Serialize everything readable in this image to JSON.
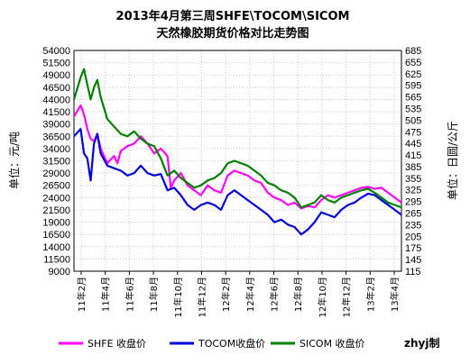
{
  "chart_data": {
    "type": "line",
    "title": "2013年4月第三周SHFE\\TOCOM\\SICOM",
    "subtitle": "天然橡胶期货价格对比走势图",
    "ylabel_left": "单位：元/吨",
    "ylabel_right": "单位：日圆/公斤",
    "left_axis": {
      "ylim": [
        9000,
        54000
      ],
      "ticks": [
        "54000",
        "51500",
        "49000",
        "46500",
        "44000",
        "41500",
        "39000",
        "36500",
        "34000",
        "31500",
        "29000",
        "26500",
        "24000",
        "21500",
        "19000",
        "16500",
        "14000",
        "11500",
        "9000"
      ]
    },
    "right_axis": {
      "ylim": [
        115,
        685
      ],
      "ticks": [
        "685",
        "655",
        "625",
        "595",
        "565",
        "535",
        "505",
        "475",
        "445",
        "415",
        "385",
        "355",
        "325",
        "295",
        "265",
        "235",
        "205",
        "175",
        "145",
        "115"
      ]
    },
    "x_tick_labels": [
      "11年2月",
      "11年4月",
      "11年6月",
      "11年8月",
      "11年10月",
      "11年12月",
      "12年2月",
      "12年4月",
      "12年6月",
      "12年8月",
      "12年10月",
      "12年12月",
      "13年2月",
      "13年4月"
    ],
    "grid": true,
    "legend_position": "bottom",
    "credit": "zhyj制",
    "series": [
      {
        "name": "SHFE 收盘价",
        "color": "#ff00ff",
        "axis": "left",
        "points": [
          [
            0,
            40500
          ],
          [
            1,
            42800
          ],
          [
            1.5,
            41000
          ],
          [
            2,
            38000
          ],
          [
            2.5,
            36000
          ],
          [
            3,
            35500
          ],
          [
            3.5,
            37000
          ],
          [
            4,
            34000
          ],
          [
            5,
            31000
          ],
          [
            6,
            32500
          ],
          [
            6.5,
            31000
          ],
          [
            7,
            33500
          ],
          [
            8,
            34500
          ],
          [
            9,
            35000
          ],
          [
            10,
            36500
          ],
          [
            11,
            35000
          ],
          [
            12,
            33000
          ],
          [
            13,
            34000
          ],
          [
            14,
            32500
          ],
          [
            14.5,
            26000
          ],
          [
            15,
            27500
          ],
          [
            16,
            29000
          ],
          [
            17,
            26500
          ],
          [
            18,
            25500
          ],
          [
            19,
            24500
          ],
          [
            20,
            26500
          ],
          [
            21,
            25500
          ],
          [
            22,
            25000
          ],
          [
            23,
            28500
          ],
          [
            24,
            29500
          ],
          [
            25,
            29000
          ],
          [
            26,
            28500
          ],
          [
            27,
            27500
          ],
          [
            28,
            27000
          ],
          [
            29,
            25000
          ],
          [
            30,
            24000
          ],
          [
            31,
            23500
          ],
          [
            32,
            22500
          ],
          [
            33,
            23000
          ],
          [
            34,
            21800
          ],
          [
            35,
            22300
          ],
          [
            36,
            22000
          ],
          [
            37,
            23500
          ],
          [
            38,
            24500
          ],
          [
            39,
            24000
          ],
          [
            40,
            24500
          ],
          [
            41,
            25000
          ],
          [
            42,
            25500
          ],
          [
            43,
            26000
          ],
          [
            44,
            26200
          ],
          [
            45,
            25800
          ],
          [
            46,
            26000
          ],
          [
            47,
            25000
          ],
          [
            48,
            24000
          ],
          [
            49,
            23000
          ]
        ]
      },
      {
        "name": "TOCOM收盘价",
        "color": "#0000dd",
        "axis": "left",
        "points": [
          [
            0,
            36500
          ],
          [
            1,
            38000
          ],
          [
            1.5,
            33000
          ],
          [
            2,
            32000
          ],
          [
            2.5,
            27500
          ],
          [
            3,
            35000
          ],
          [
            3.5,
            37000
          ],
          [
            4,
            33000
          ],
          [
            5,
            30500
          ],
          [
            6,
            30000
          ],
          [
            7,
            29500
          ],
          [
            8,
            28500
          ],
          [
            9,
            29000
          ],
          [
            10,
            30500
          ],
          [
            11,
            29000
          ],
          [
            12,
            28500
          ],
          [
            13,
            28800
          ],
          [
            14,
            25500
          ],
          [
            15,
            26000
          ],
          [
            16,
            24500
          ],
          [
            17,
            22500
          ],
          [
            18,
            21500
          ],
          [
            19,
            22500
          ],
          [
            20,
            23000
          ],
          [
            21,
            22500
          ],
          [
            22,
            21500
          ],
          [
            23,
            24500
          ],
          [
            24,
            25500
          ],
          [
            25,
            24500
          ],
          [
            26,
            23500
          ],
          [
            27,
            22500
          ],
          [
            28,
            21500
          ],
          [
            29,
            20500
          ],
          [
            30,
            19000
          ],
          [
            31,
            19500
          ],
          [
            32,
            18500
          ],
          [
            33,
            18000
          ],
          [
            34,
            16500
          ],
          [
            35,
            17500
          ],
          [
            36,
            19000
          ],
          [
            37,
            21000
          ],
          [
            38,
            20500
          ],
          [
            39,
            20000
          ],
          [
            40,
            21500
          ],
          [
            41,
            22500
          ],
          [
            42,
            23000
          ],
          [
            43,
            24000
          ],
          [
            44,
            24800
          ],
          [
            45,
            24500
          ],
          [
            46,
            23500
          ],
          [
            47,
            22500
          ],
          [
            48,
            21500
          ],
          [
            49,
            20500
          ]
        ]
      },
      {
        "name": "SICOM 收盘价",
        "color": "#008000",
        "axis": "left",
        "points": [
          [
            0,
            44000
          ],
          [
            1,
            48500
          ],
          [
            1.5,
            50200
          ],
          [
            2,
            47000
          ],
          [
            2.5,
            44000
          ],
          [
            3,
            46500
          ],
          [
            3.5,
            48000
          ],
          [
            4,
            44500
          ],
          [
            5,
            40000
          ],
          [
            6,
            38500
          ],
          [
            7,
            37000
          ],
          [
            8,
            36500
          ],
          [
            9,
            37500
          ],
          [
            10,
            36000
          ],
          [
            11,
            35000
          ],
          [
            12,
            34500
          ],
          [
            13,
            32000
          ],
          [
            14,
            28500
          ],
          [
            15,
            29500
          ],
          [
            16,
            28000
          ],
          [
            17,
            27000
          ],
          [
            18,
            26000
          ],
          [
            19,
            26500
          ],
          [
            20,
            27500
          ],
          [
            21,
            28000
          ],
          [
            22,
            29000
          ],
          [
            23,
            31000
          ],
          [
            24,
            31500
          ],
          [
            25,
            31000
          ],
          [
            26,
            30500
          ],
          [
            27,
            29500
          ],
          [
            28,
            28500
          ],
          [
            29,
            27000
          ],
          [
            30,
            26500
          ],
          [
            31,
            25500
          ],
          [
            32,
            25000
          ],
          [
            33,
            24000
          ],
          [
            34,
            22000
          ],
          [
            35,
            22500
          ],
          [
            36,
            23000
          ],
          [
            37,
            24500
          ],
          [
            38,
            23500
          ],
          [
            39,
            23000
          ],
          [
            40,
            24000
          ],
          [
            41,
            24500
          ],
          [
            42,
            25000
          ],
          [
            43,
            25500
          ],
          [
            44,
            25800
          ],
          [
            45,
            25000
          ],
          [
            46,
            24000
          ],
          [
            47,
            23000
          ],
          [
            48,
            22500
          ],
          [
            49,
            22000
          ]
        ]
      }
    ]
  }
}
